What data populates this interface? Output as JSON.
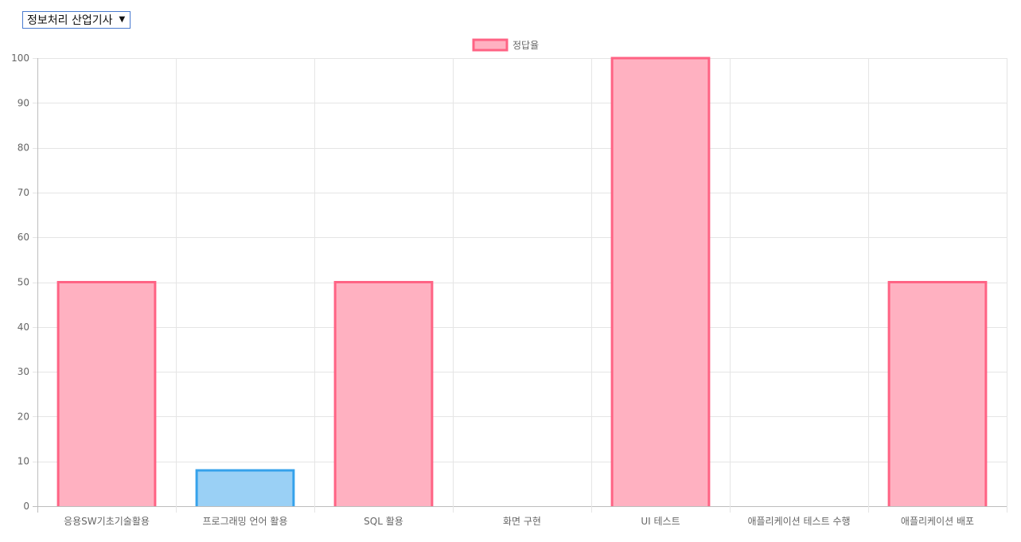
{
  "selector": {
    "selected": "정보처리 산업기사",
    "arrow_icon": "triangle-down-icon"
  },
  "chart_data": {
    "type": "bar",
    "categories": [
      "응용SW기초기술활용",
      "프로그래밍 언어 활용",
      "SQL 활용",
      "화면 구현",
      "UI 테스트",
      "애플리케이션 테스트 수행",
      "애플리케이션 배포"
    ],
    "series": [
      {
        "name": "정답율",
        "values": [
          50,
          8,
          50,
          0,
          100,
          0,
          50
        ],
        "bar_colors": [
          "pink",
          "blue",
          "pink",
          "pink",
          "pink",
          "pink",
          "pink"
        ]
      }
    ],
    "ylim": [
      0,
      100
    ],
    "yticks": [
      0,
      10,
      20,
      30,
      40,
      50,
      60,
      70,
      80,
      90,
      100
    ],
    "grid": true,
    "legend": "top-center",
    "colors": {
      "pink_fill": "#ffb1c1",
      "pink_border": "#ff6384",
      "blue_fill": "#9ad0f5",
      "blue_border": "#36a2eb",
      "grid": "#e5e5e5",
      "axis": "#bdbdbd",
      "tick_text": "#666666"
    }
  }
}
